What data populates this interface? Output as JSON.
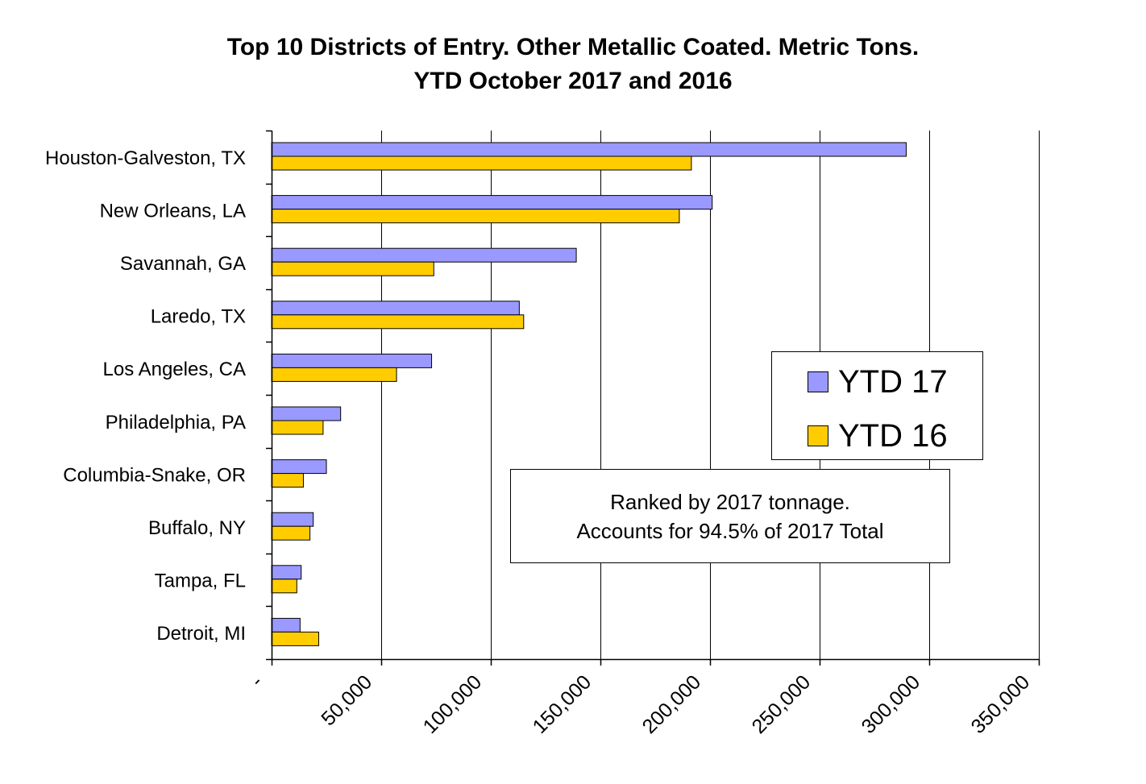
{
  "chart_data": {
    "type": "bar",
    "orientation": "horizontal",
    "title": "Top 10 Districts of Entry. Other Metallic Coated. Metric Tons.",
    "subtitle": "YTD October 2017 and 2016",
    "categories": [
      "Houston-Galveston, TX",
      "New Orleans, LA",
      "Savannah, GA",
      "Laredo, TX",
      "Los Angeles, CA",
      "Philadelphia, PA",
      "Columbia-Snake, OR",
      "Buffalo, NY",
      "Tampa, FL",
      "Detroit, MI"
    ],
    "series": [
      {
        "name": "YTD 17",
        "color": "#9999ff",
        "values": [
          289500,
          201000,
          139000,
          113000,
          73000,
          31500,
          25000,
          19000,
          13500,
          13000
        ]
      },
      {
        "name": "YTD 16",
        "color": "#ffcc00",
        "values": [
          191500,
          186000,
          74000,
          115000,
          57000,
          23500,
          14500,
          17500,
          11500,
          21500
        ]
      }
    ],
    "xlim": [
      0,
      350000
    ],
    "xticks": [
      0,
      50000,
      100000,
      150000,
      200000,
      250000,
      300000,
      350000
    ],
    "xtick_labels": [
      "-",
      "50,000",
      "100,000",
      "150,000",
      "200,000",
      "250,000",
      "300,000",
      "350,000"
    ],
    "xlabel": "",
    "ylabel": "",
    "grid": true,
    "legend_position": "right",
    "annotation": [
      "Ranked by 2017 tonnage.",
      "Accounts for 94.5% of 2017 Total"
    ]
  }
}
